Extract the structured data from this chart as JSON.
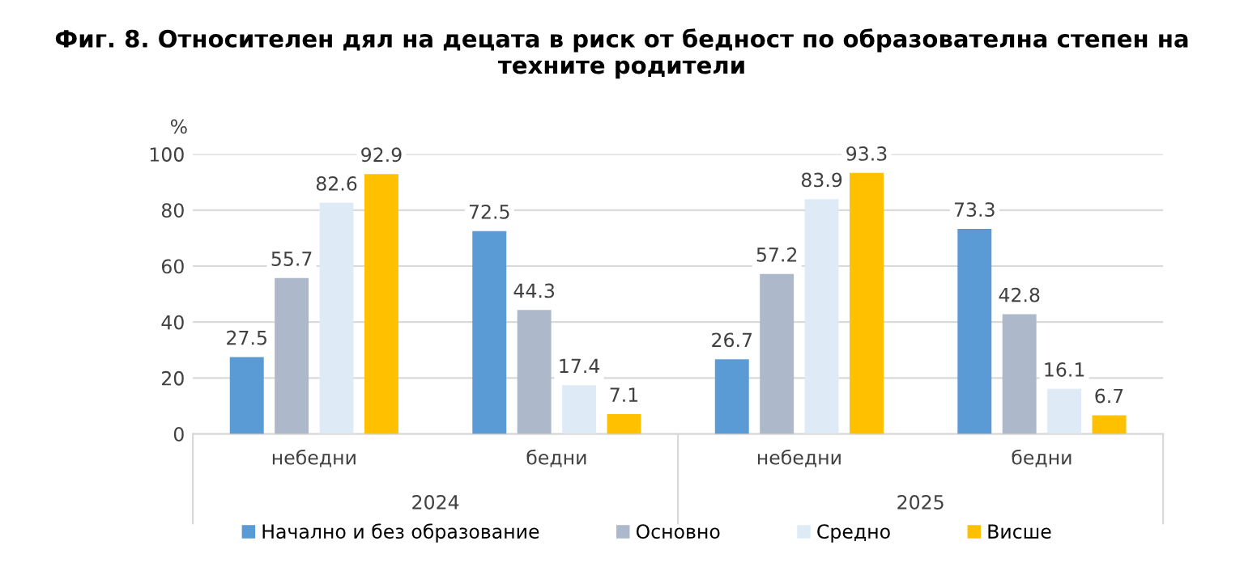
{
  "chart_data": {
    "type": "bar",
    "title": "Фиг. 8. Относителен дял на децата в риск от бедност по образователна степен на техните родители",
    "ylabel": "%",
    "categories": [
      "небедни",
      "бедни",
      "небедни",
      "бедни"
    ],
    "annotations": [
      "2024",
      "2025"
    ],
    "series": [
      {
        "name": "Начално и без образование",
        "color": "#5b9bd5",
        "values": [
          27.5,
          72.5,
          26.7,
          73.3
        ]
      },
      {
        "name": "Основно",
        "color": "#adb9ca",
        "values": [
          55.7,
          44.3,
          57.2,
          42.8
        ]
      },
      {
        "name": "Средно",
        "color": "#deebf7",
        "values": [
          82.6,
          17.4,
          83.9,
          16.1
        ]
      },
      {
        "name": "Висше",
        "color": "#ffc000",
        "values": [
          92.9,
          7.1,
          93.3,
          6.7
        ]
      }
    ],
    "ylim": [
      0,
      100
    ],
    "yticks": [
      0,
      20,
      40,
      60,
      80,
      100
    ],
    "grid": "y",
    "legend": "bottom",
    "data_labels": true
  }
}
